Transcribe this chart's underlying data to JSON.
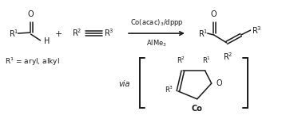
{
  "background": "#ffffff",
  "fig_width": 3.78,
  "fig_height": 1.45,
  "dpi": 100,
  "line_color": "#1a1a1a",
  "text_color": "#1a1a1a",
  "font_size_main": 7.0,
  "font_size_small": 6.0,
  "font_size_arrow_text": 6.0,
  "font_size_r1": 6.5,
  "arrow_above": "Co(acac)$_3$/dppp",
  "arrow_below": "AlMe$_3$",
  "via_label": "via",
  "r1_footnote": "R$^1$ = aryl, alkyl"
}
